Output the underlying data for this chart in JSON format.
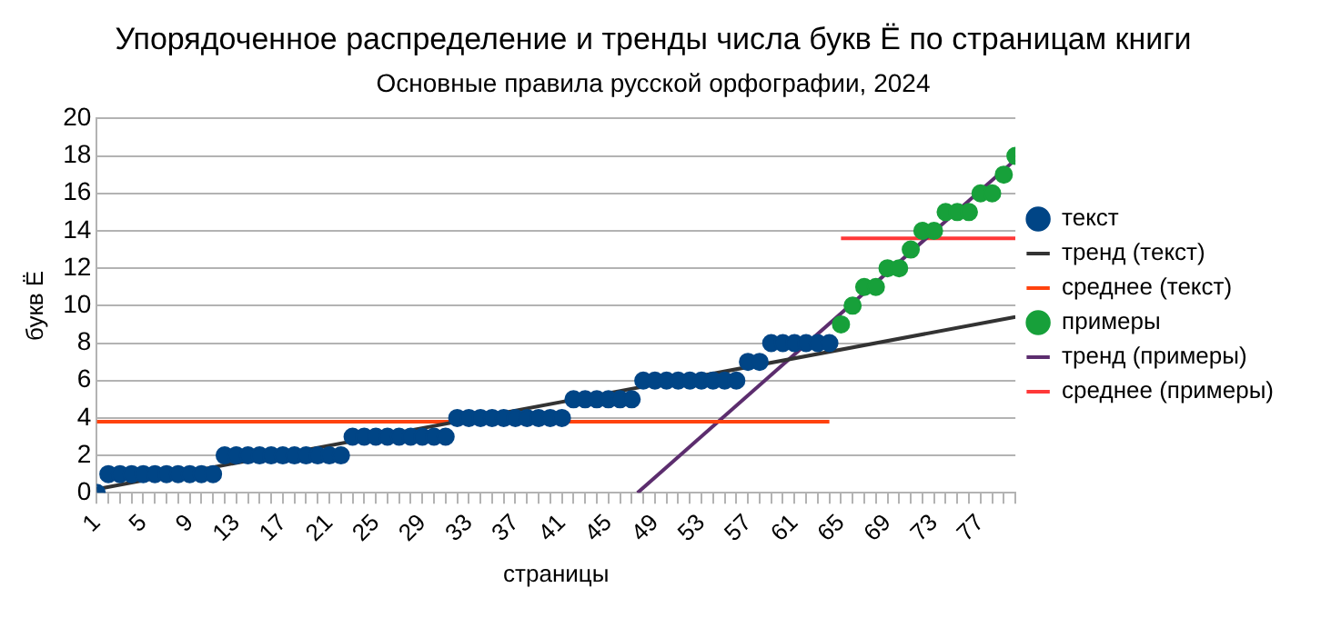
{
  "chart_data": {
    "type": "scatter",
    "title": "Упорядоченное распределение и тренды числа букв Ё по страницам книги",
    "subtitle": "Основные правила русской орфографии, 2024",
    "xlabel": "страницы",
    "ylabel": "букв Ё",
    "xlim": [
      1,
      80
    ],
    "xticks": [
      1,
      {
        "value": 2,
        "label": null
      },
      {
        "value": 3,
        "label": null
      },
      {
        "value": 4,
        "label": null
      },
      5,
      {
        "value": 6,
        "label": null
      },
      {
        "value": 7,
        "label": null
      },
      {
        "value": 8,
        "label": null
      },
      9,
      {
        "value": 10,
        "label": null
      },
      {
        "value": 11,
        "label": null
      },
      {
        "value": 12,
        "label": null
      },
      13,
      {
        "value": 14,
        "label": null
      },
      {
        "value": 15,
        "label": null
      },
      {
        "value": 16,
        "label": null
      },
      17,
      {
        "value": 18,
        "label": null
      },
      {
        "value": 19,
        "label": null
      },
      {
        "value": 20,
        "label": null
      },
      21,
      {
        "value": 22,
        "label": null
      },
      {
        "value": 23,
        "label": null
      },
      {
        "value": 24,
        "label": null
      },
      25,
      {
        "value": 26,
        "label": null
      },
      {
        "value": 27,
        "label": null
      },
      {
        "value": 28,
        "label": null
      },
      29,
      {
        "value": 30,
        "label": null
      },
      {
        "value": 31,
        "label": null
      },
      {
        "value": 32,
        "label": null
      },
      33,
      {
        "value": 34,
        "label": null
      },
      {
        "value": 35,
        "label": null
      },
      {
        "value": 36,
        "label": null
      },
      37,
      {
        "value": 38,
        "label": null
      },
      {
        "value": 39,
        "label": null
      },
      {
        "value": 40,
        "label": null
      },
      41,
      {
        "value": 42,
        "label": null
      },
      {
        "value": 43,
        "label": null
      },
      {
        "value": 44,
        "label": null
      },
      45,
      {
        "value": 46,
        "label": null
      },
      {
        "value": 47,
        "label": null
      },
      {
        "value": 48,
        "label": null
      },
      49,
      {
        "value": 50,
        "label": null
      },
      {
        "value": 51,
        "label": null
      },
      {
        "value": 52,
        "label": null
      },
      53,
      {
        "value": 54,
        "label": null
      },
      {
        "value": 55,
        "label": null
      },
      {
        "value": 56,
        "label": null
      },
      57,
      {
        "value": 58,
        "label": null
      },
      {
        "value": 59,
        "label": null
      },
      {
        "value": 60,
        "label": null
      },
      61,
      {
        "value": 62,
        "label": null
      },
      {
        "value": 63,
        "label": null
      },
      {
        "value": 64,
        "label": null
      },
      65,
      {
        "value": 66,
        "label": null
      },
      {
        "value": 67,
        "label": null
      },
      {
        "value": 68,
        "label": null
      },
      69,
      {
        "value": 70,
        "label": null
      },
      {
        "value": 71,
        "label": null
      },
      {
        "value": 72,
        "label": null
      },
      73,
      {
        "value": 74,
        "label": null
      },
      {
        "value": 75,
        "label": null
      },
      {
        "value": 76,
        "label": null
      },
      77,
      {
        "value": 78,
        "label": null
      },
      {
        "value": 79,
        "label": null
      },
      {
        "value": 80,
        "label": null
      }
    ],
    "ylim": [
      0,
      20
    ],
    "yticks": [
      0,
      2,
      4,
      6,
      8,
      10,
      12,
      14,
      16,
      18,
      20
    ],
    "grid": "y",
    "legend": "right",
    "series": [
      {
        "name": "текст",
        "type": "scatter",
        "marker": "circle",
        "color": "#004586",
        "x": [
          1,
          2,
          3,
          4,
          5,
          6,
          7,
          8,
          9,
          10,
          11,
          12,
          13,
          14,
          15,
          16,
          17,
          18,
          19,
          20,
          21,
          22,
          23,
          24,
          25,
          26,
          27,
          28,
          29,
          30,
          31,
          32,
          33,
          34,
          35,
          36,
          37,
          38,
          39,
          40,
          41,
          42,
          43,
          44,
          45,
          46,
          47,
          48,
          49,
          50,
          51,
          52,
          53,
          54,
          55,
          56,
          57,
          58,
          59,
          60,
          61,
          62,
          63,
          64
        ],
        "values": [
          0,
          1,
          1,
          1,
          1,
          1,
          1,
          1,
          1,
          1,
          1,
          2,
          2,
          2,
          2,
          2,
          2,
          2,
          2,
          2,
          2,
          2,
          3,
          3,
          3,
          3,
          3,
          3,
          3,
          3,
          3,
          4,
          4,
          4,
          4,
          4,
          4,
          4,
          4,
          4,
          4,
          5,
          5,
          5,
          5,
          5,
          5,
          6,
          6,
          6,
          6,
          6,
          6,
          6,
          6,
          6,
          7,
          7,
          8,
          8,
          8,
          8,
          8,
          8
        ]
      },
      {
        "name": "тренд (текст)",
        "type": "line",
        "marker": "none",
        "color": "#333333",
        "x": [
          1,
          80
        ],
        "values": [
          0.2,
          9.4
        ]
      },
      {
        "name": "среднее (текст)",
        "type": "line",
        "marker": "none",
        "color": "#ff420e",
        "x": [
          1,
          64
        ],
        "values": [
          3.8,
          3.8
        ]
      },
      {
        "name": "примеры",
        "type": "scatter",
        "marker": "circle",
        "color": "#17a03a",
        "x": [
          65,
          66,
          67,
          68,
          69,
          70,
          71,
          72,
          73,
          74,
          75,
          76,
          77,
          78,
          79,
          80
        ],
        "values": [
          9,
          10,
          11,
          11,
          12,
          12,
          13,
          14,
          14,
          15,
          15,
          15,
          16,
          16,
          17,
          18
        ]
      },
      {
        "name": "тренд (примеры)",
        "type": "line",
        "marker": "none",
        "color": "#5c2d6e",
        "x": [
          47.5,
          80
        ],
        "values": [
          0,
          17.8
        ]
      },
      {
        "name": "среднее (примеры)",
        "type": "line",
        "marker": "none",
        "color": "#ff3838",
        "x": [
          65,
          80
        ],
        "values": [
          13.6,
          13.6
        ]
      }
    ]
  }
}
